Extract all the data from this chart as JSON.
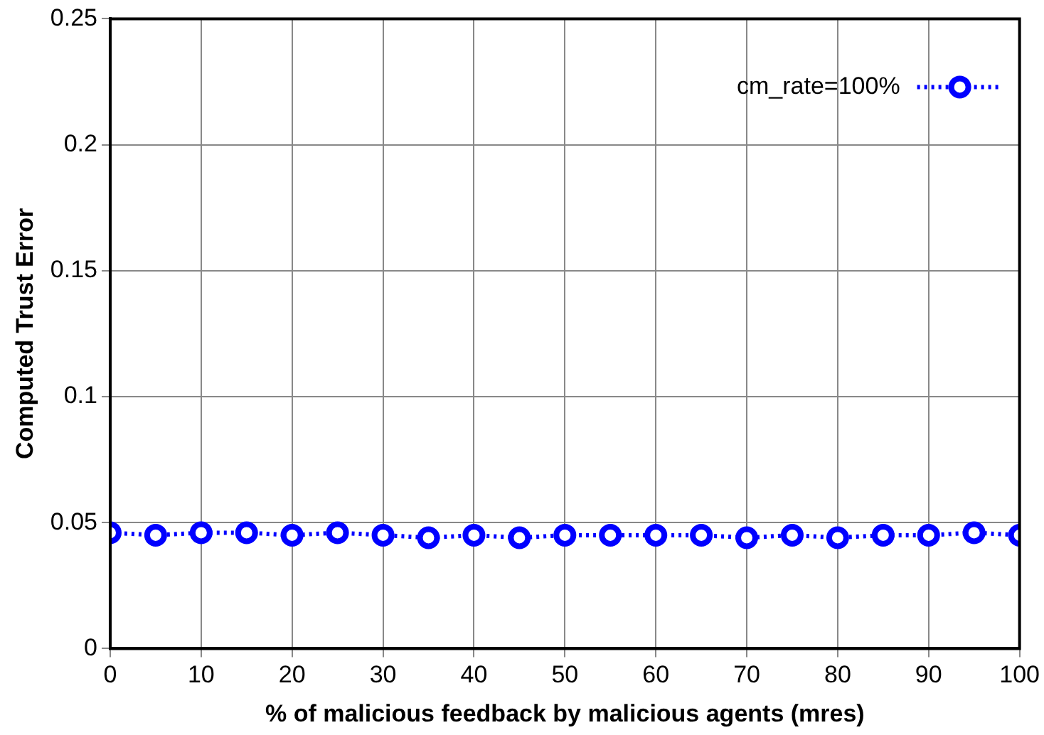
{
  "chart_data": {
    "type": "line",
    "xlabel": "% of malicious feedback by malicious agents (mres)",
    "ylabel": "Computed Trust Error",
    "x": [
      0,
      5,
      10,
      15,
      20,
      25,
      30,
      35,
      40,
      45,
      50,
      55,
      60,
      65,
      70,
      75,
      80,
      85,
      90,
      95,
      100
    ],
    "series": [
      {
        "name": "cm_rate=100%",
        "color": "#0000ff",
        "values": [
          0.046,
          0.045,
          0.046,
          0.046,
          0.045,
          0.046,
          0.045,
          0.044,
          0.045,
          0.044,
          0.045,
          0.045,
          0.045,
          0.045,
          0.044,
          0.045,
          0.044,
          0.045,
          0.045,
          0.046,
          0.045
        ]
      }
    ],
    "xlim": [
      0,
      100
    ],
    "xticks": [
      0,
      10,
      20,
      30,
      40,
      50,
      60,
      70,
      80,
      90,
      100
    ],
    "ylim": [
      0,
      0.25
    ],
    "yticks": [
      0,
      0.05,
      0.1,
      0.15,
      0.2,
      0.25
    ],
    "grid": true,
    "legend": "top right",
    "marker": "circle",
    "line_style": "dotted"
  }
}
